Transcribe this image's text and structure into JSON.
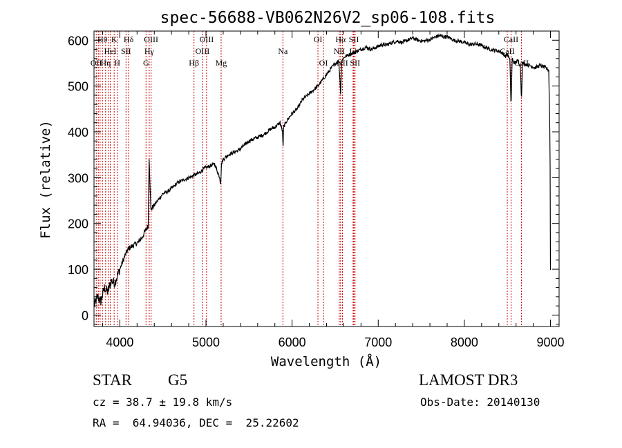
{
  "chart_data": {
    "type": "line",
    "title": "spec-56688-VB062N26V2_sp06-108.fits",
    "xlabel": "Wavelength (Å)",
    "ylabel": "Flux (relative)",
    "xlim": [
      3700,
      9100
    ],
    "ylim": [
      -25,
      620
    ],
    "xticks": [
      4000,
      5000,
      6000,
      7000,
      8000,
      9000
    ],
    "yticks": [
      0,
      100,
      200,
      300,
      400,
      500,
      600
    ],
    "grid": false,
    "line_color": "#000000",
    "marker_color": "#cc0000",
    "spectrum": {
      "x": [
        3700,
        3740,
        3780,
        3820,
        3860,
        3900,
        3940,
        3980,
        4020,
        4060,
        4100,
        4140,
        4180,
        4220,
        4260,
        4300,
        4330,
        4340,
        4360,
        4380,
        4420,
        4460,
        4500,
        4560,
        4620,
        4680,
        4740,
        4800,
        4860,
        4920,
        4980,
        5040,
        5100,
        5160,
        5170,
        5180,
        5200,
        5260,
        5320,
        5380,
        5440,
        5500,
        5560,
        5620,
        5680,
        5740,
        5800,
        5860,
        5890,
        5895,
        5900,
        5940,
        6000,
        6060,
        6120,
        6180,
        6240,
        6300,
        6360,
        6420,
        6480,
        6540,
        6555,
        6563,
        6575,
        6590,
        6620,
        6680,
        6740,
        6800,
        6860,
        6920,
        6980,
        7040,
        7100,
        7160,
        7220,
        7280,
        7340,
        7400,
        7460,
        7520,
        7580,
        7640,
        7700,
        7760,
        7820,
        7880,
        7940,
        8000,
        8060,
        8120,
        8180,
        8240,
        8300,
        8360,
        8420,
        8480,
        8500,
        8530,
        8542,
        8555,
        8580,
        8620,
        8650,
        8662,
        8675,
        8700,
        8760,
        8820,
        8880,
        8940,
        8980,
        8995,
        9000
      ],
      "y": [
        20,
        40,
        30,
        60,
        50,
        75,
        70,
        90,
        110,
        130,
        145,
        150,
        155,
        160,
        170,
        185,
        195,
        345,
        230,
        235,
        245,
        255,
        265,
        270,
        280,
        290,
        295,
        300,
        305,
        310,
        320,
        325,
        330,
        300,
        285,
        330,
        340,
        350,
        355,
        360,
        370,
        380,
        385,
        390,
        395,
        405,
        410,
        420,
        400,
        355,
        410,
        425,
        440,
        450,
        470,
        480,
        490,
        500,
        515,
        530,
        545,
        555,
        520,
        480,
        550,
        560,
        565,
        570,
        575,
        580,
        585,
        580,
        585,
        590,
        590,
        595,
        598,
        595,
        600,
        605,
        600,
        598,
        600,
        605,
        610,
        608,
        606,
        600,
        598,
        595,
        590,
        592,
        590,
        585,
        580,
        578,
        575,
        565,
        570,
        555,
        450,
        560,
        550,
        555,
        545,
        470,
        550,
        548,
        545,
        540,
        545,
        540,
        535,
        380,
        100
      ]
    },
    "lines": [
      {
        "wave": 3726,
        "label": "OII",
        "row": 2
      },
      {
        "wave": 3750,
        "label": "",
        "row": 0
      },
      {
        "wave": 3771,
        "label": "",
        "row": 0
      },
      {
        "wave": 3798,
        "label": "Hθ",
        "row": 0
      },
      {
        "wave": 3835,
        "label": "Hη",
        "row": 2
      },
      {
        "wave": 3869,
        "label": "",
        "row": 1
      },
      {
        "wave": 3889,
        "label": "HeI",
        "row": 1
      },
      {
        "wave": 3934,
        "label": "K",
        "row": 0
      },
      {
        "wave": 3970,
        "label": "H",
        "row": 2
      },
      {
        "wave": 4072,
        "label": "SII",
        "row": 1
      },
      {
        "wave": 4102,
        "label": "Hδ",
        "row": 0
      },
      {
        "wave": 4304,
        "label": "G",
        "row": 2
      },
      {
        "wave": 4341,
        "label": "Hγ",
        "row": 1
      },
      {
        "wave": 4363,
        "label": "OIII",
        "row": 0
      },
      {
        "wave": 4861,
        "label": "Hβ",
        "row": 2
      },
      {
        "wave": 4959,
        "label": "OIII",
        "row": 1
      },
      {
        "wave": 5007,
        "label": "OIII",
        "row": 0
      },
      {
        "wave": 5176,
        "label": "Mg",
        "row": 2
      },
      {
        "wave": 5893,
        "label": "Na",
        "row": 1
      },
      {
        "wave": 6300,
        "label": "OI",
        "row": 0
      },
      {
        "wave": 6364,
        "label": "OI",
        "row": 2
      },
      {
        "wave": 6548,
        "label": "NII",
        "row": 1
      },
      {
        "wave": 6563,
        "label": "Hα",
        "row": 0
      },
      {
        "wave": 6584,
        "label": "NII",
        "row": 2
      },
      {
        "wave": 6708,
        "label": "Li",
        "row": 1
      },
      {
        "wave": 6717,
        "label": "SII",
        "row": 0
      },
      {
        "wave": 6731,
        "label": "SII",
        "row": 2
      },
      {
        "wave": 8498,
        "label": "CaII",
        "row": 1
      },
      {
        "wave": 8542,
        "label": "CaII",
        "row": 0
      },
      {
        "wave": 8662,
        "label": "CaII",
        "row": 2
      }
    ]
  },
  "info": {
    "object_class": "STAR",
    "subclass": "G5",
    "survey": "LAMOST DR3",
    "redshift": "cz = 38.7 ± 19.8 km/s",
    "obs_date": "Obs-Date: 20140130",
    "coords": "RA =  64.94036, DEC =  25.22602"
  }
}
